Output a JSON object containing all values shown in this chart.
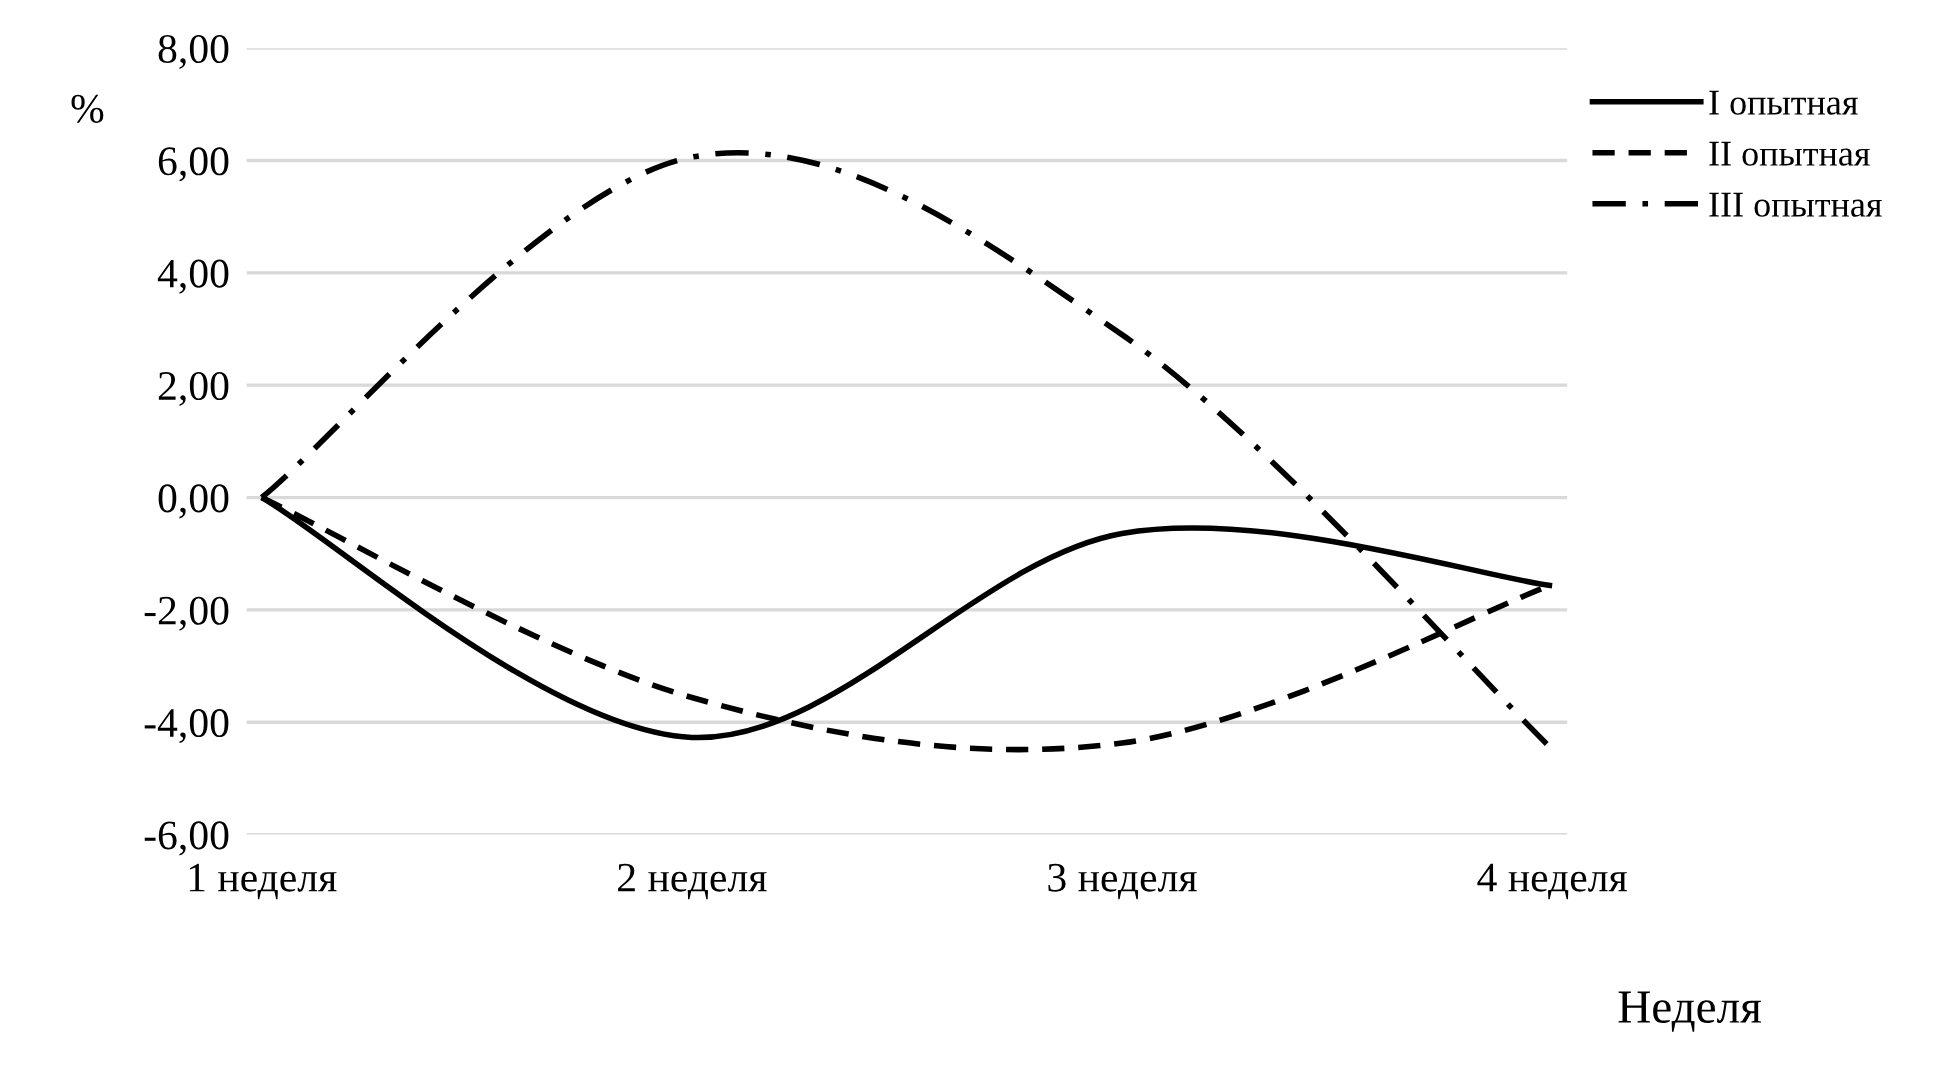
{
  "chart_data": {
    "type": "line",
    "xlabel": "Неделя",
    "ylabel": "%",
    "categories": [
      "1 неделя",
      "2 неделя",
      "3 неделя",
      "4 неделя"
    ],
    "ylim": [
      -6,
      8
    ],
    "yticks": [
      {
        "value": -6,
        "label": "-6,00"
      },
      {
        "value": -4,
        "label": "-4,00"
      },
      {
        "value": -2,
        "label": "-2,00"
      },
      {
        "value": 0,
        "label": "0,00"
      },
      {
        "value": 2,
        "label": "2,00"
      },
      {
        "value": 4,
        "label": "4,00"
      },
      {
        "value": 6,
        "label": "6,00"
      },
      {
        "value": 8,
        "label": "8,00"
      }
    ],
    "grid": "y",
    "legend": "top right",
    "marker": "none",
    "series": [
      {
        "name": "I опытная",
        "color": "#000000",
        "line_style": "solid",
        "values": [
          0,
          -4.27,
          -0.64,
          -1.57
        ]
      },
      {
        "name": "II опытная",
        "color": "#000000",
        "line_style": "dashed",
        "values": [
          0,
          -3.56,
          -4.37,
          -1.55
        ]
      },
      {
        "name": "III опытная",
        "color": "#000000",
        "line_style": "dashdot",
        "values": [
          0,
          6.06,
          2.9,
          -4.48
        ]
      }
    ]
  }
}
